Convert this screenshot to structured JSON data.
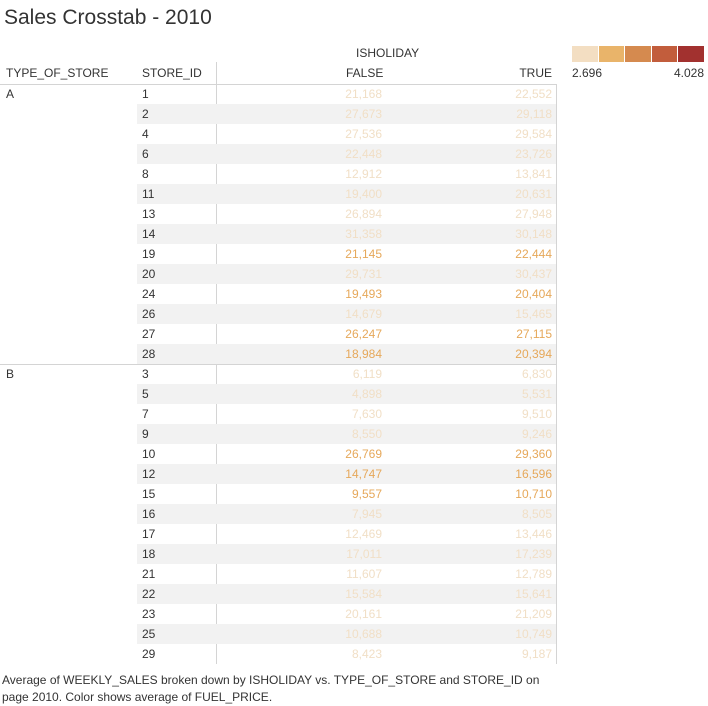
{
  "title": "Sales Crosstab - 2010",
  "legend": {
    "min_label": "2.696",
    "max_label": "4.028",
    "colors": [
      "#f3dec2",
      "#e9b46a",
      "#d58a4f",
      "#c25d3c",
      "#a2312f"
    ]
  },
  "headers": {
    "column_group": "ISHOLIDAY",
    "type_of_store": "TYPE_OF_STORE",
    "store_id": "STORE_ID",
    "false": "FALSE",
    "true": "TRUE"
  },
  "chart_data": {
    "type": "table",
    "title": "Sales Crosstab - 2010",
    "measure": "Average of WEEKLY_SALES",
    "color_measure": "average of FUEL_PRICE",
    "color_range": [
      2.696,
      4.028
    ],
    "columns": [
      "FALSE",
      "TRUE"
    ],
    "groups": [
      {
        "type": "A",
        "rows": [
          {
            "store": "1",
            "false": "21,168",
            "true": "22,552",
            "color": "#f1dfc6"
          },
          {
            "store": "2",
            "false": "27,673",
            "true": "29,118",
            "color": "#f1dfc6"
          },
          {
            "store": "4",
            "false": "27,536",
            "true": "29,584",
            "color": "#f1dfc6"
          },
          {
            "store": "6",
            "false": "22,448",
            "true": "23,726",
            "color": "#f1dfc6"
          },
          {
            "store": "8",
            "false": "12,912",
            "true": "13,841",
            "color": "#f1dfc6"
          },
          {
            "store": "11",
            "false": "19,400",
            "true": "20,631",
            "color": "#f1dfc6"
          },
          {
            "store": "13",
            "false": "26,894",
            "true": "27,948",
            "color": "#f1dfc6"
          },
          {
            "store": "14",
            "false": "31,358",
            "true": "30,148",
            "color": "#f1dfc6"
          },
          {
            "store": "19",
            "false": "21,145",
            "true": "22,444",
            "color": "#e6a85a"
          },
          {
            "store": "20",
            "false": "29,731",
            "true": "30,437",
            "color": "#f1dfc6"
          },
          {
            "store": "24",
            "false": "19,493",
            "true": "20,404",
            "color": "#e6a85a"
          },
          {
            "store": "26",
            "false": "14,679",
            "true": "15,465",
            "color": "#f1dfc6"
          },
          {
            "store": "27",
            "false": "26,247",
            "true": "27,115",
            "color": "#e6a85a"
          },
          {
            "store": "28",
            "false": "18,984",
            "true": "20,394",
            "color": "#e6a85a"
          }
        ]
      },
      {
        "type": "B",
        "rows": [
          {
            "store": "3",
            "false": "6,119",
            "true": "6,830",
            "color": "#f1dfc6"
          },
          {
            "store": "5",
            "false": "4,898",
            "true": "5,531",
            "color": "#f1dfc6"
          },
          {
            "store": "7",
            "false": "7,630",
            "true": "9,510",
            "color": "#f1dfc6"
          },
          {
            "store": "9",
            "false": "8,550",
            "true": "9,246",
            "color": "#f1dfc6"
          },
          {
            "store": "10",
            "false": "26,769",
            "true": "29,360",
            "color": "#e6a85a"
          },
          {
            "store": "12",
            "false": "14,747",
            "true": "16,596",
            "color": "#e6a85a"
          },
          {
            "store": "15",
            "false": "9,557",
            "true": "10,710",
            "color": "#e6a85a"
          },
          {
            "store": "16",
            "false": "7,945",
            "true": "8,505",
            "color": "#f1dfc6"
          },
          {
            "store": "17",
            "false": "12,469",
            "true": "13,446",
            "color": "#f1dfc6"
          },
          {
            "store": "18",
            "false": "17,011",
            "true": "17,239",
            "color": "#f1dfc6"
          },
          {
            "store": "21",
            "false": "11,607",
            "true": "12,789",
            "color": "#f1dfc6"
          },
          {
            "store": "22",
            "false": "15,584",
            "true": "15,641",
            "color": "#f1dfc6"
          },
          {
            "store": "23",
            "false": "20,161",
            "true": "21,209",
            "color": "#f1dfc6"
          },
          {
            "store": "25",
            "false": "10,688",
            "true": "10,749",
            "color": "#f1dfc6"
          },
          {
            "store": "29",
            "false": "8,423",
            "true": "9,187",
            "color": "#f1dfc6"
          }
        ]
      }
    ]
  },
  "caption": "Average of WEEKLY_SALES broken down by ISHOLIDAY vs. TYPE_OF_STORE and STORE_ID on page 2010.  Color shows average of FUEL_PRICE."
}
